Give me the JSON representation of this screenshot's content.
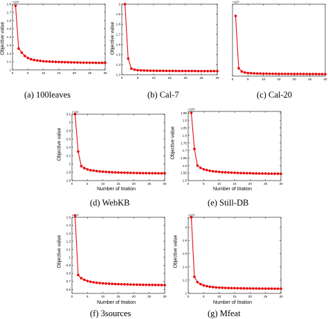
{
  "colors": {
    "series": "#e8070b",
    "axis": "#000000"
  },
  "chart_data": [
    {
      "type": "line",
      "caption": "(a)  100leaves",
      "multiplier": "×10⁴",
      "xlabel": "",
      "ylabel": "Objective value",
      "xlim": [
        0,
        30
      ],
      "ylim": [
        1,
        1.8
      ],
      "xticks": [
        0,
        5,
        10,
        15,
        20,
        25,
        30
      ],
      "yticks": [
        1,
        1.1,
        1.2,
        1.3,
        1.4,
        1.5,
        1.6,
        1.7,
        1.8
      ],
      "ytick_labels": [
        "1",
        "1.1",
        "1.2",
        "1.3",
        "1.4",
        "1.5",
        "1.6",
        "1.7",
        "1.8"
      ],
      "x": [
        1,
        2,
        3,
        4,
        5,
        6,
        7,
        8,
        9,
        10,
        11,
        12,
        13,
        14,
        15,
        16,
        17,
        18,
        19,
        20,
        21,
        22,
        23,
        24,
        25,
        26,
        27,
        28,
        29,
        30
      ],
      "y": [
        1.78,
        1.26,
        1.21,
        1.17,
        1.145,
        1.13,
        1.12,
        1.115,
        1.11,
        1.105,
        1.103,
        1.101,
        1.099,
        1.097,
        1.096,
        1.095,
        1.094,
        1.093,
        1.092,
        1.091,
        1.09,
        1.089,
        1.088,
        1.088,
        1.087,
        1.087,
        1.086,
        1.086,
        1.085,
        1.085
      ]
    },
    {
      "type": "line",
      "caption": "(b)  Cal-7",
      "multiplier": "",
      "xlabel": "",
      "ylabel": "Objective value",
      "xlim": [
        0,
        30
      ],
      "ylim": [
        1.3,
        2.0
      ],
      "xticks": [
        0,
        5,
        10,
        15,
        20,
        25,
        30
      ],
      "yticks": [
        1.3,
        1.4,
        1.5,
        1.6,
        1.7,
        1.8,
        1.9,
        2.0
      ],
      "ytick_labels": [
        "1.3",
        "1.4",
        "1.5",
        "1.6",
        "1.7",
        "1.8",
        "1.9",
        "2"
      ],
      "x": [
        1,
        2,
        3,
        4,
        5,
        6,
        7,
        8,
        9,
        10,
        11,
        12,
        13,
        14,
        15,
        16,
        17,
        18,
        19,
        20,
        21,
        22,
        23,
        24,
        25,
        26,
        27,
        28,
        29,
        30
      ],
      "y": [
        2.0,
        1.46,
        1.36,
        1.35,
        1.345,
        1.343,
        1.342,
        1.341,
        1.34,
        1.34,
        1.339,
        1.339,
        1.339,
        1.338,
        1.338,
        1.338,
        1.338,
        1.337,
        1.337,
        1.337,
        1.337,
        1.337,
        1.337,
        1.336,
        1.336,
        1.336,
        1.336,
        1.336,
        1.336,
        1.336
      ]
    },
    {
      "type": "line",
      "caption": "(c)  Cal-20",
      "multiplier": "×10⁴",
      "xlabel": "",
      "ylabel": "",
      "xlim": [
        0,
        30
      ],
      "ylim": [
        1.9,
        3.0
      ],
      "xticks": [
        0,
        5,
        10,
        15,
        20,
        25,
        30
      ],
      "yticks": [],
      "ytick_labels": [],
      "x": [
        1,
        2,
        3,
        4,
        5,
        6,
        7,
        8,
        9,
        10,
        11,
        12,
        13,
        14,
        15,
        16,
        17,
        18,
        19,
        20,
        21,
        22,
        23,
        24,
        25,
        26,
        27,
        28,
        29,
        30
      ],
      "y": [
        2.82,
        2.02,
        1.97,
        1.955,
        1.948,
        1.944,
        1.942,
        1.94,
        1.939,
        1.938,
        1.937,
        1.936,
        1.936,
        1.935,
        1.935,
        1.934,
        1.934,
        1.934,
        1.933,
        1.933,
        1.933,
        1.933,
        1.932,
        1.932,
        1.932,
        1.932,
        1.932,
        1.931,
        1.931,
        1.931
      ]
    },
    {
      "type": "line",
      "caption": "(d)  WebKB",
      "multiplier": "×10⁵",
      "xlabel": "Number of Itration",
      "ylabel": "Objective value",
      "xlim": [
        0,
        30
      ],
      "ylim": [
        1.6,
        3.2
      ],
      "xticks": [
        0,
        5,
        10,
        15,
        20,
        25,
        30
      ],
      "yticks": [
        1.6,
        1.8,
        2.0,
        2.2,
        2.4,
        2.6,
        2.8,
        3.0,
        3.2
      ],
      "ytick_labels": [
        "1.6",
        "1.8",
        "2",
        "2.2",
        "2.4",
        "2.6",
        "2.8",
        "3",
        "3.2"
      ],
      "x": [
        1,
        2,
        3,
        4,
        5,
        6,
        7,
        8,
        9,
        10,
        11,
        12,
        13,
        14,
        15,
        16,
        17,
        18,
        19,
        20,
        21,
        22,
        23,
        24,
        25,
        26,
        27,
        28,
        29,
        30
      ],
      "y": [
        3.2,
        2.3,
        1.95,
        1.9,
        1.87,
        1.85,
        1.84,
        1.83,
        1.82,
        1.815,
        1.81,
        1.805,
        1.8,
        1.797,
        1.795,
        1.792,
        1.79,
        1.788,
        1.786,
        1.785,
        1.783,
        1.782,
        1.781,
        1.78,
        1.779,
        1.778,
        1.777,
        1.776,
        1.775,
        1.775
      ]
    },
    {
      "type": "line",
      "caption": "(e)  Still-DB",
      "multiplier": "×10⁵",
      "xlabel": "Number of Itration",
      "ylabel": "Objective value",
      "xlim": [
        0,
        30
      ],
      "ylim": [
        1.5,
        1.96
      ],
      "xticks": [
        0,
        5,
        10,
        15,
        20,
        25,
        30
      ],
      "yticks": [
        1.5,
        1.55,
        1.6,
        1.65,
        1.7,
        1.75,
        1.8,
        1.85,
        1.9,
        1.95
      ],
      "ytick_labels": [
        "1.5",
        "1.55",
        "1.6",
        "1.65",
        "1.7",
        "1.75",
        "1.8",
        "1.85",
        "1.9",
        "1.95"
      ],
      "x": [
        1,
        2,
        3,
        4,
        5,
        6,
        7,
        8,
        9,
        10,
        11,
        12,
        13,
        14,
        15,
        16,
        17,
        18,
        19,
        20,
        21,
        22,
        23,
        24,
        25,
        26,
        27,
        28,
        29,
        30
      ],
      "y": [
        1.95,
        1.71,
        1.6,
        1.585,
        1.575,
        1.57,
        1.565,
        1.562,
        1.56,
        1.558,
        1.556,
        1.555,
        1.554,
        1.553,
        1.552,
        1.551,
        1.55,
        1.55,
        1.549,
        1.549,
        1.548,
        1.548,
        1.547,
        1.547,
        1.547,
        1.546,
        1.546,
        1.546,
        1.546,
        1.545
      ]
    },
    {
      "type": "line",
      "caption": "(f)  3sources",
      "multiplier": "×10⁵",
      "xlabel": "Number of Itration",
      "ylabel": "Objective value",
      "xlim": [
        0,
        30
      ],
      "ylim": [
        0.55,
        1.5
      ],
      "xticks": [
        0,
        5,
        10,
        15,
        20,
        25,
        30
      ],
      "yticks": [
        0.6,
        0.7,
        0.8,
        0.9,
        1.0,
        1.1,
        1.2,
        1.3,
        1.4,
        1.5
      ],
      "ytick_labels": [
        "0.6",
        "0.7",
        "0.8",
        "0.9",
        "1",
        "1.1",
        "1.2",
        "1.3",
        "1.4",
        "1.5"
      ],
      "x": [
        1,
        2,
        3,
        4,
        5,
        6,
        7,
        8,
        9,
        10,
        11,
        12,
        13,
        14,
        15,
        16,
        17,
        18,
        19,
        20,
        21,
        22,
        23,
        24,
        25,
        26,
        27,
        28,
        29,
        30
      ],
      "y": [
        1.52,
        0.78,
        0.74,
        0.72,
        0.705,
        0.695,
        0.688,
        0.683,
        0.679,
        0.676,
        0.673,
        0.671,
        0.669,
        0.667,
        0.666,
        0.664,
        0.663,
        0.662,
        0.661,
        0.66,
        0.659,
        0.658,
        0.657,
        0.657,
        0.656,
        0.656,
        0.655,
        0.655,
        0.654,
        0.654
      ]
    },
    {
      "type": "line",
      "caption": "(g)  Mfeat",
      "multiplier": "×10⁵",
      "xlabel": "Number of Itration",
      "ylabel": "Objective value",
      "xlim": [
        0,
        30
      ],
      "ylim": [
        1.0,
        2.15
      ],
      "xticks": [
        0,
        5,
        10,
        15,
        20,
        25,
        30
      ],
      "yticks": [
        1.0,
        1.2,
        1.4,
        1.6,
        1.8,
        2.0
      ],
      "ytick_labels": [
        "1",
        "1.2",
        "1.4",
        "1.6",
        "1.8",
        "2"
      ],
      "x": [
        1,
        2,
        3,
        4,
        5,
        6,
        7,
        8,
        9,
        10,
        11,
        12,
        13,
        14,
        15,
        16,
        17,
        18,
        19,
        20,
        21,
        22,
        23,
        24,
        25,
        26,
        27,
        28,
        29,
        30
      ],
      "y": [
        2.15,
        1.25,
        1.17,
        1.14,
        1.12,
        1.11,
        1.1,
        1.095,
        1.09,
        1.087,
        1.085,
        1.083,
        1.081,
        1.08,
        1.079,
        1.078,
        1.077,
        1.076,
        1.075,
        1.075,
        1.074,
        1.074,
        1.073,
        1.073,
        1.072,
        1.072,
        1.072,
        1.071,
        1.071,
        1.071
      ]
    }
  ]
}
